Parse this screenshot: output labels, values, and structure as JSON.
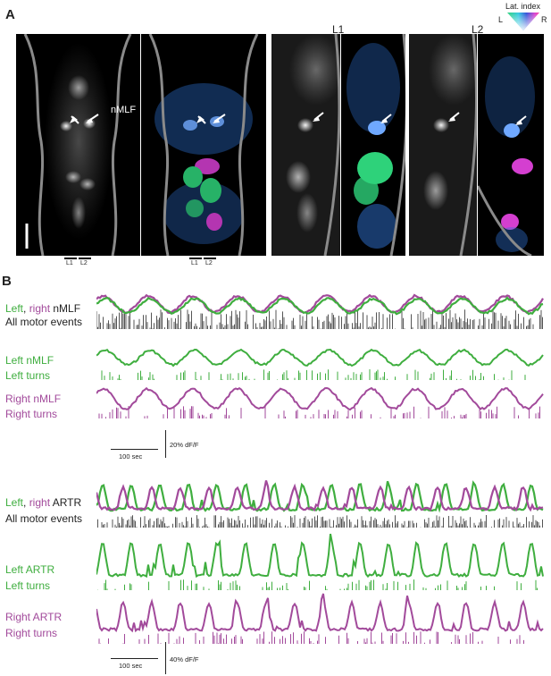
{
  "panelA": {
    "letter": "A",
    "nmlf_label": "nMLF",
    "l1_title": "L1",
    "l2_title": "L2",
    "cut_l1": "L1",
    "cut_l2": "L2",
    "lat_index": {
      "title": "Lat. index",
      "left": "L",
      "right": "R"
    }
  },
  "panelB": {
    "letter": "B",
    "nmlf": {
      "row1": {
        "left": "Left",
        "sep": ", ",
        "right": "right",
        "suffix": " nMLF",
        "motor": "All motor events"
      },
      "row2": {
        "trace": "Left nMLF",
        "turns": "Left turns"
      },
      "row3": {
        "trace": "Right nMLF",
        "turns": "Right turns"
      },
      "scale_time": "100 sec",
      "scale_df": "20% dF/F"
    },
    "artr": {
      "row1": {
        "left": "Left",
        "sep": ", ",
        "right": "right",
        "suffix": " ARTR",
        "motor": "All motor events"
      },
      "row2": {
        "trace": "Left ARTR",
        "turns": "Left turns"
      },
      "row3": {
        "trace": "Right ARTR",
        "turns": "Right turns"
      },
      "scale_time": "100 sec",
      "scale_df": "40% dF/F"
    }
  },
  "colors": {
    "green": "#3fae3f",
    "purple": "#a24a9b",
    "gray": "#555555",
    "blue": "#2f73d6"
  }
}
